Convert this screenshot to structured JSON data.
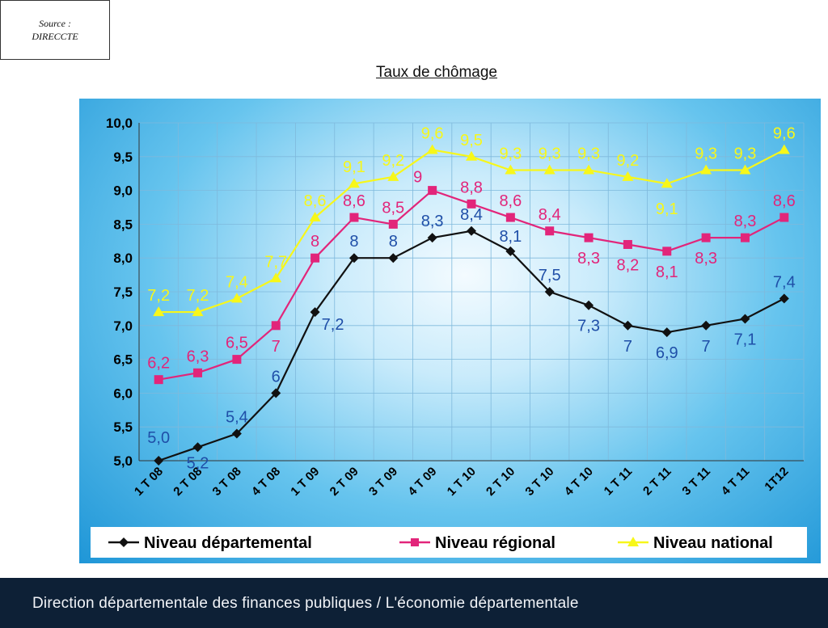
{
  "source": {
    "line1": "Source :",
    "line2": "DIRECCTE"
  },
  "footer": {
    "text": "Direction départementale des finances publiques / L'économie départementale"
  },
  "chart_data": {
    "type": "line",
    "title": "Taux de chômage",
    "xlabel": "",
    "ylabel": "",
    "ylim": [
      5.0,
      10.0
    ],
    "yticks": [
      "5,0",
      "5,5",
      "6,0",
      "6,5",
      "7,0",
      "7,5",
      "8,0",
      "8,5",
      "9,0",
      "9,5",
      "10,0"
    ],
    "grid": true,
    "legend_position": "bottom",
    "categories": [
      "1 T 08",
      "2 T 08",
      "3 T 08",
      "4 T 08",
      "1 T 09",
      "2 T 09",
      "3 T 09",
      "4 T 09",
      "1 T 10",
      "2 T 10",
      "3 T 10",
      "4 T 10",
      "1 T 11",
      "2 T 11",
      "3 T 11",
      "4 T 11",
      "1T12"
    ],
    "series": [
      {
        "name": "Niveau départemental",
        "color": "#111111",
        "label_color": "#1f4fa8",
        "marker": "diamond",
        "values": [
          5.0,
          5.2,
          5.4,
          6,
          7.2,
          8,
          8,
          8.3,
          8.4,
          8.1,
          7.5,
          7.3,
          7,
          6.9,
          7,
          7.1,
          7.4
        ],
        "labels": [
          "5,0",
          "5,2",
          "5,4",
          "6",
          "7,2",
          "8",
          "8",
          "8,3",
          "8,4",
          "8,1",
          "7,5",
          "7,3",
          "7",
          "6,9",
          "7",
          "7,1",
          "7,4"
        ]
      },
      {
        "name": "Niveau régional",
        "color": "#e2257a",
        "label_color": "#e2257a",
        "marker": "square",
        "values": [
          6.2,
          6.3,
          6.5,
          7,
          8,
          8.6,
          8.5,
          9,
          8.8,
          8.6,
          8.4,
          8.3,
          8.2,
          8.1,
          8.3,
          8.3,
          8.6
        ],
        "labels": [
          "6,2",
          "6,3",
          "6,5",
          "7",
          "8",
          "8,6",
          "8,5",
          "9",
          "8,8",
          "8,6",
          "8,4",
          "8,3",
          "8,2",
          "8,1",
          "8,3",
          "8,3",
          "8,6"
        ]
      },
      {
        "name": "Niveau national",
        "color": "#f7f71a",
        "label_color": "#f7f71a",
        "marker": "triangle",
        "values": [
          7.2,
          7.2,
          7.4,
          7.7,
          8.6,
          9.1,
          9.2,
          9.6,
          9.5,
          9.3,
          9.3,
          9.3,
          9.2,
          9.1,
          9.3,
          9.3,
          9.6
        ],
        "labels": [
          "7,2",
          "7,2",
          "7,4",
          "7,7",
          "8,6",
          "9,1",
          "9,2",
          "9,6",
          "9,5",
          "9,3",
          "9,3",
          "9,3",
          "9,2",
          "9,1",
          "9,3",
          "9,3",
          "9,6"
        ]
      }
    ]
  }
}
